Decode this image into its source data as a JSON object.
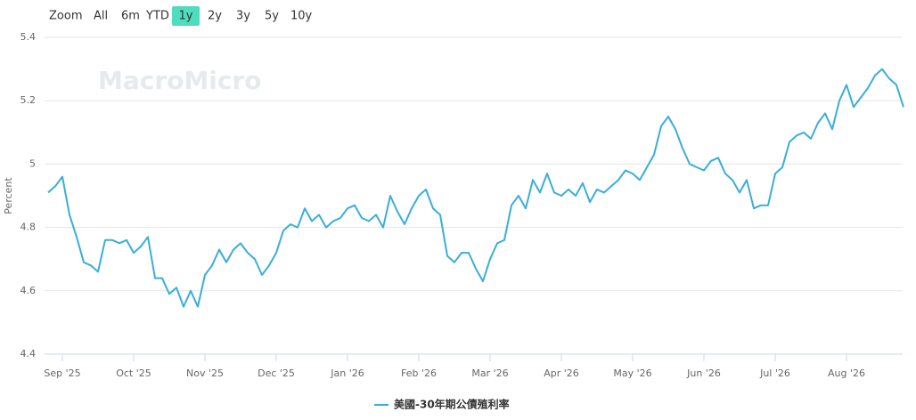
{
  "toolbar": {
    "zoom_label": "Zoom",
    "ranges": [
      "All",
      "6m",
      "YTD",
      "1y",
      "2y",
      "3y",
      "5y",
      "10y"
    ],
    "active": 3
  },
  "chart_data": {
    "type": "line",
    "watermark": "MacroMicro",
    "y_label": "Percent",
    "categories": [
      null,
      null,
      "Sep '25",
      null,
      null,
      null,
      null,
      null,
      null,
      null,
      null,
      null,
      "Oct '25",
      null,
      null,
      null,
      null,
      null,
      null,
      null,
      null,
      null,
      "Nov '25",
      null,
      null,
      null,
      null,
      null,
      null,
      null,
      null,
      null,
      "Dec '25",
      null,
      null,
      null,
      null,
      null,
      null,
      null,
      null,
      null,
      "Jan '26",
      null,
      null,
      null,
      null,
      null,
      null,
      null,
      null,
      null,
      "Feb '26",
      null,
      null,
      null,
      null,
      null,
      null,
      null,
      null,
      null,
      "Mar '26",
      null,
      null,
      null,
      null,
      null,
      null,
      null,
      null,
      null,
      "Apr '26",
      null,
      null,
      null,
      null,
      null,
      null,
      null,
      null,
      null,
      "May '26",
      null,
      null,
      null,
      null,
      null,
      null,
      null,
      null,
      null,
      "Jun '26",
      null,
      null,
      null,
      null,
      null,
      null,
      null,
      null,
      null,
      "Jul '26",
      null,
      null,
      null,
      null,
      null,
      null,
      null,
      null,
      null,
      "Aug '26",
      null,
      null,
      null,
      null,
      null,
      null,
      null,
      null
    ],
    "series": [
      {
        "name": "美國-30年期公債殖利率",
        "color": "#3aaed8",
        "values": [
          4.91,
          4.93,
          4.96,
          4.84,
          4.77,
          4.69,
          4.68,
          4.66,
          4.76,
          4.76,
          4.75,
          4.76,
          4.72,
          4.74,
          4.77,
          4.64,
          4.64,
          4.59,
          4.61,
          4.55,
          4.6,
          4.55,
          4.65,
          4.68,
          4.73,
          4.69,
          4.73,
          4.75,
          4.72,
          4.7,
          4.65,
          4.68,
          4.72,
          4.79,
          4.81,
          4.8,
          4.86,
          4.82,
          4.84,
          4.8,
          4.82,
          4.83,
          4.86,
          4.87,
          4.83,
          4.82,
          4.84,
          4.8,
          4.9,
          4.85,
          4.81,
          4.86,
          4.9,
          4.92,
          4.86,
          4.84,
          4.71,
          4.69,
          4.72,
          4.72,
          4.67,
          4.63,
          4.7,
          4.75,
          4.76,
          4.87,
          4.9,
          4.86,
          4.95,
          4.91,
          4.97,
          4.91,
          4.9,
          4.92,
          4.9,
          4.94,
          4.88,
          4.92,
          4.91,
          4.93,
          4.95,
          4.98,
          4.97,
          4.95,
          4.99,
          5.03,
          5.12,
          5.15,
          5.11,
          5.05,
          5.0,
          4.99,
          4.98,
          5.01,
          5.02,
          4.97,
          4.95,
          4.91,
          4.95,
          4.86,
          4.87,
          4.87,
          4.97,
          4.99,
          5.07,
          5.09,
          5.1,
          5.08,
          5.13,
          5.16,
          5.11,
          5.2,
          5.25,
          5.18,
          5.21,
          5.24,
          5.28,
          5.3,
          5.27,
          5.25,
          5.18
        ]
      }
    ],
    "ylim": [
      4.4,
      5.4
    ],
    "yticks": [
      4.4,
      4.6,
      4.8,
      5,
      5.2,
      5.4
    ],
    "grid": true
  }
}
